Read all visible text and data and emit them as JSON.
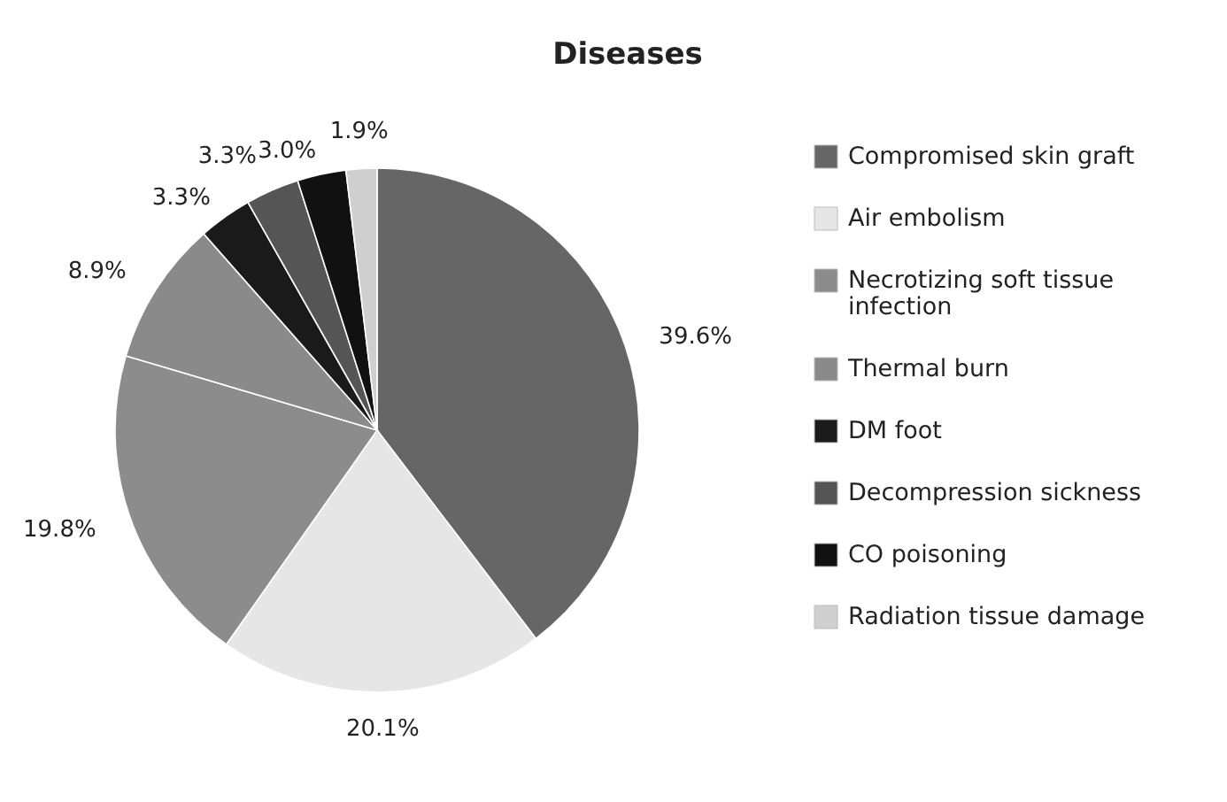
{
  "chart_data": {
    "type": "pie",
    "title": "Diseases",
    "categories": [
      "Compromised skin graft",
      "Air embolism",
      "Necrotizing soft tissue infection",
      "Thermal burn",
      "DM foot",
      "Decompression sickness",
      "CO poisoning",
      "Radiation tissue damage"
    ],
    "values": [
      39.6,
      20.1,
      19.8,
      8.9,
      3.3,
      3.3,
      3.0,
      1.9
    ],
    "value_labels": [
      "39.6%",
      "20.1%",
      "19.8%",
      "8.9%",
      "3.3%",
      "3.3%",
      "3.0%",
      "1.9%"
    ],
    "colors": [
      "#666666",
      "#e6e6e6",
      "#8c8c8c",
      "#8a8a8a",
      "#1a1a1a",
      "#555555",
      "#111111",
      "#cfcfcf"
    ],
    "legend": "right"
  }
}
